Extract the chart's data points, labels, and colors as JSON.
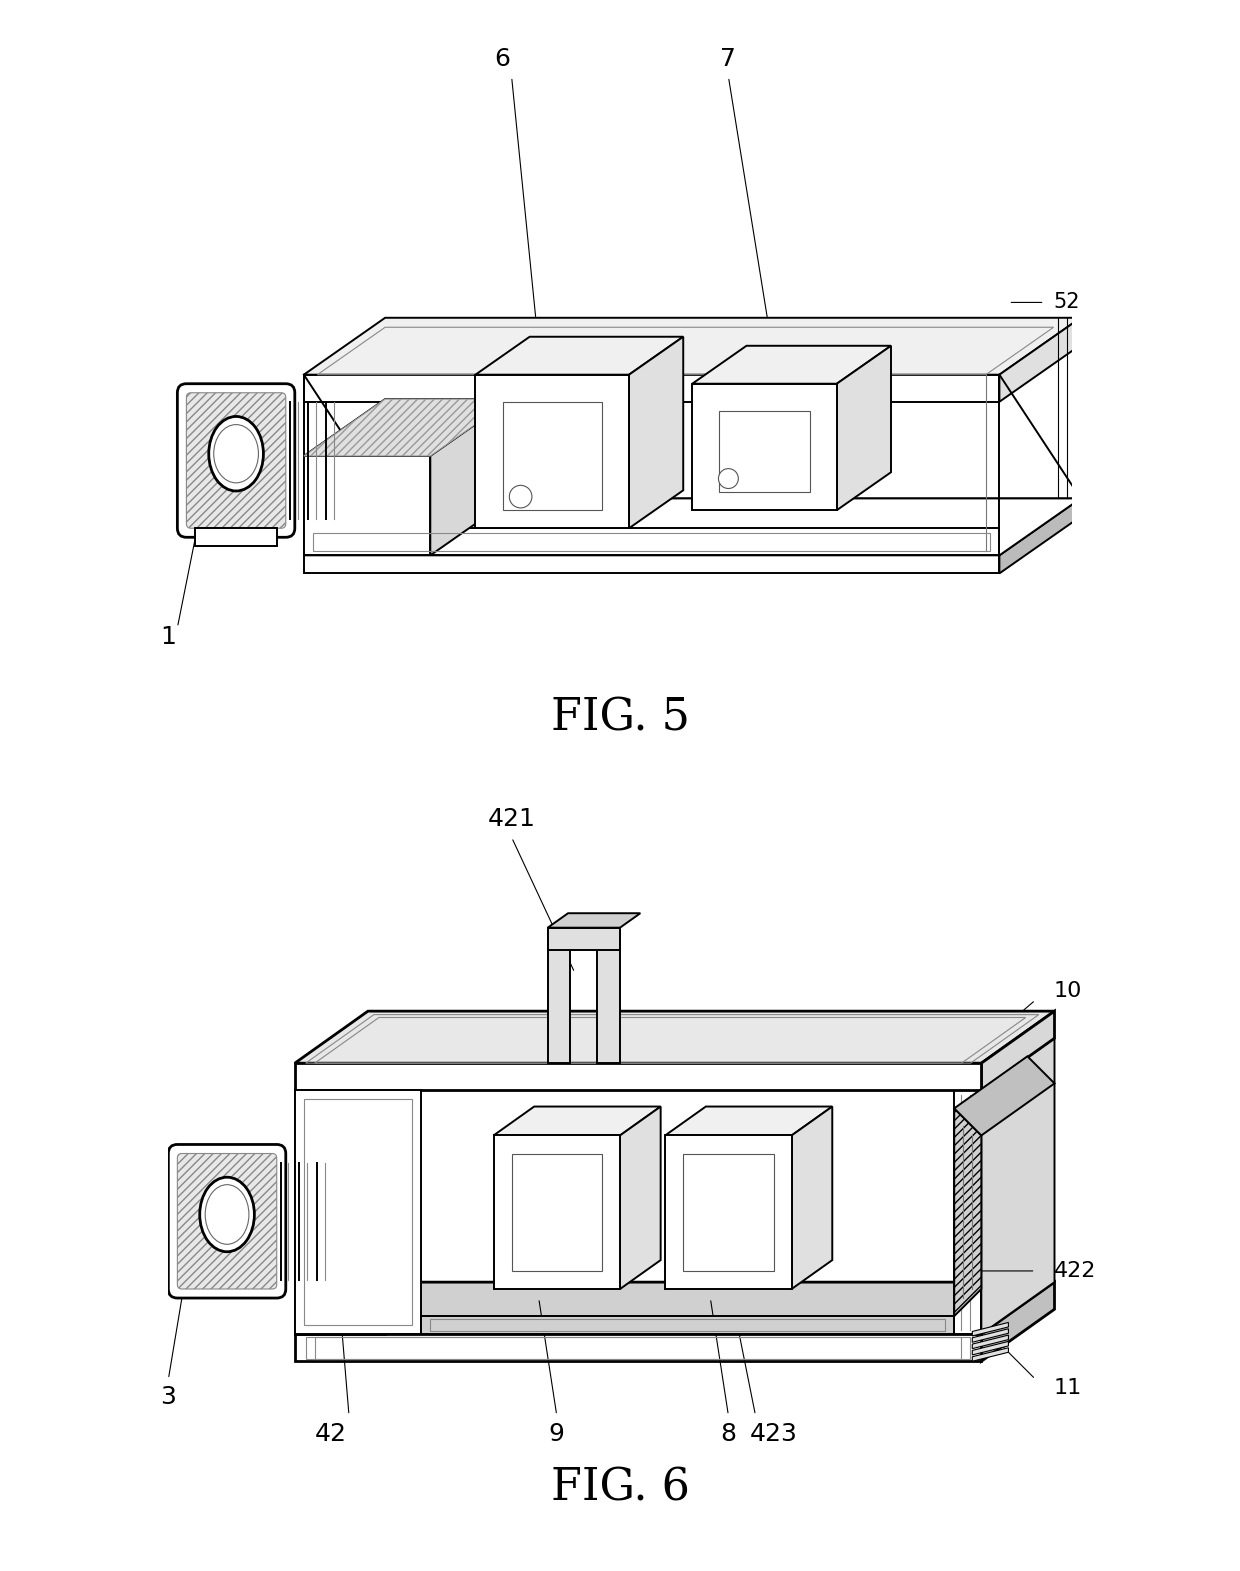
{
  "bg_color": "#ffffff",
  "lc": "#000000",
  "fig5_label": "FIG. 5",
  "fig6_label": "FIG. 6",
  "title_fs": 32,
  "ann_fs": 18,
  "lw": 1.4,
  "lw_thin": 0.8,
  "lw_thick": 2.0
}
